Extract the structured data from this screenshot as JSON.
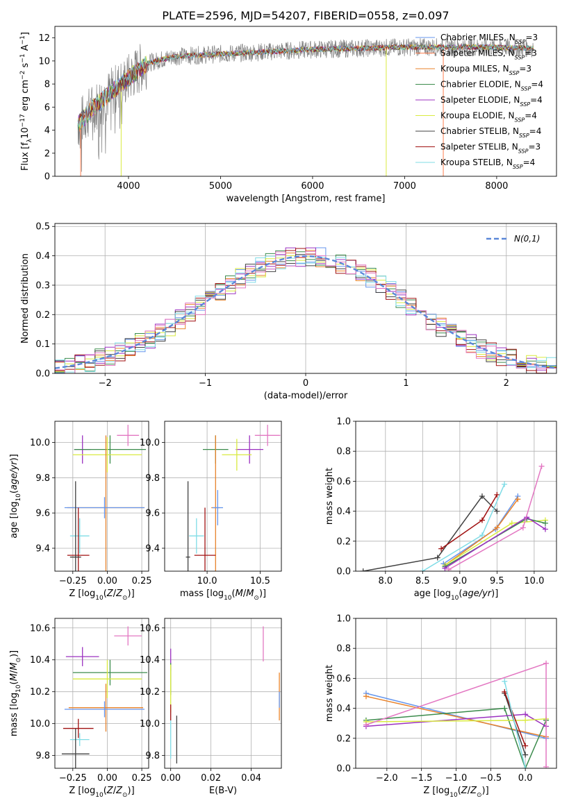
{
  "figure_title": "PLATE=2596, MJD=54207, FIBERID=0558, z=0.097",
  "colors": {
    "observed": "#808080",
    "models": [
      "#6495ed",
      "#ff7f50",
      "#e8822a",
      "#3b8b4c",
      "#9b30c0",
      "#d9ea3f",
      "#404040",
      "#a01010",
      "#7fdce6",
      "#e377c2"
    ]
  },
  "chart_data": [
    {
      "id": "spectrum",
      "type": "line",
      "title": "PLATE=2596, MJD=54207, FIBERID=0558, z=0.097",
      "xlabel": "wavelength [Angstrom, rest frame]",
      "ylabel": "Flux [f_λ10^-17 erg cm^-2 s^-1 A^-1]",
      "xlim": [
        3200,
        8650
      ],
      "ylim": [
        0,
        13
      ],
      "xticks": [
        "4000",
        "5000",
        "6000",
        "7000",
        "8000"
      ],
      "yticks": [
        "0",
        "2",
        "4",
        "6",
        "8",
        "10",
        "12"
      ],
      "grid": false,
      "legend": "top-right",
      "observed_anchors": {
        "x": [
          3450,
          3600,
          3800,
          4000,
          4200,
          4500,
          5000,
          5500,
          6000,
          6500,
          7000,
          7500,
          8000,
          8400
        ],
        "y": [
          4.5,
          5.8,
          7.2,
          8.5,
          9.8,
          10.4,
          10.6,
          10.8,
          11.0,
          11.1,
          11.2,
          11.2,
          11.2,
          11.1
        ]
      },
      "legend_entries": [
        {
          "label": "Chabrier MILES, N",
          "sub": "SSP",
          "tail": "=3",
          "color": "#6495ed"
        },
        {
          "label": "Salpeter MILES, N",
          "sub": "SSP",
          "tail": "=3",
          "color": "#ff7f50"
        },
        {
          "label": "Kroupa MILES, N",
          "sub": "SSP",
          "tail": "=3",
          "color": "#e8822a"
        },
        {
          "label": "Chabrier ELODIE, N",
          "sub": "SSP",
          "tail": "=4",
          "color": "#3b8b4c"
        },
        {
          "label": "Salpeter ELODIE, N",
          "sub": "SSP",
          "tail": "=4",
          "color": "#9b30c0"
        },
        {
          "label": "Kroupa ELODIE, N",
          "sub": "SSP",
          "tail": "=4",
          "color": "#d9ea3f"
        },
        {
          "label": "Chabrier STELIB, N",
          "sub": "SSP",
          "tail": "=4",
          "color": "#404040"
        },
        {
          "label": "Salpeter STELIB, N",
          "sub": "SSP",
          "tail": "=3",
          "color": "#a01010"
        },
        {
          "label": "Kroupa STELIB, N",
          "sub": "SSP",
          "tail": "=4",
          "color": "#7fdce6"
        }
      ]
    },
    {
      "id": "residuals",
      "type": "line",
      "xlabel": "(data-model)/error",
      "ylabel": "Normed distribution",
      "xlim": [
        -2.5,
        2.5
      ],
      "ylim": [
        0,
        0.51
      ],
      "xticks": [
        "−2",
        "−1",
        "0",
        "1",
        "2"
      ],
      "yticks": [
        "0.0",
        "0.1",
        "0.2",
        "0.3",
        "0.4",
        "0.5"
      ],
      "grid": true,
      "legend": "top-right",
      "legend_label": "N(0,1)",
      "curve": "gaussian mean 0 sigma 1, peak 0.399"
    },
    {
      "id": "age-vs-Z",
      "type": "scatter",
      "xlabel": "Z [log10(Z/Z⊙)]",
      "ylabel": "age [log10(age/yr)]",
      "xlim": [
        -0.38,
        0.3
      ],
      "ylim": [
        9.27,
        10.12
      ],
      "xticks": [
        "−0.25",
        "0.00",
        "0.25"
      ],
      "yticks": [
        "9.4",
        "9.6",
        "9.8",
        "10.0"
      ],
      "grid": true,
      "points": [
        {
          "x": 0.15,
          "y": 10.04,
          "xerr": 0.08,
          "yerr": 0.06,
          "color": "#e377c2"
        },
        {
          "x": -0.18,
          "y": 9.96,
          "xerr": 0.06,
          "yerr": 0.08,
          "color": "#9b30c0"
        },
        {
          "x": 0.02,
          "y": 9.96,
          "xerr": 0.26,
          "yerr": 0.08,
          "color": "#3b8b4c"
        },
        {
          "x": 0.0,
          "y": 9.93,
          "xerr": 0.25,
          "yerr": 0.1,
          "color": "#d9ea3f"
        },
        {
          "x": -0.01,
          "y": 9.63,
          "xerr": 0.28,
          "yerr": 0.41,
          "color": "#e8822a"
        },
        {
          "x": -0.02,
          "y": 9.63,
          "xerr": 0.29,
          "yerr": 0.06,
          "color": "#6495ed"
        },
        {
          "x": -0.2,
          "y": 9.47,
          "xerr": 0.07,
          "yerr": 0.1,
          "color": "#7fdce6"
        },
        {
          "x": -0.21,
          "y": 9.36,
          "xerr": 0.08,
          "yerr": 0.27,
          "color": "#a01010"
        },
        {
          "x": -0.23,
          "y": 9.35,
          "xerr": 0.04,
          "yerr": 0.43,
          "color": "#404040"
        }
      ]
    },
    {
      "id": "age-vs-mass",
      "type": "scatter",
      "xlabel": "mass [log10(M/M⊙)]",
      "ylabel": "",
      "xlim": [
        9.6,
        10.7
      ],
      "ylim": [
        9.27,
        10.12
      ],
      "xticks": [
        "10.0",
        "10.5"
      ],
      "yticks": [
        "9.4",
        "9.6",
        "9.8",
        "10.0"
      ],
      "grid": true,
      "points": [
        {
          "x": 10.57,
          "y": 10.04,
          "xerr": 0.12,
          "yerr": 0.06,
          "color": "#e377c2"
        },
        {
          "x": 10.4,
          "y": 9.96,
          "xerr": 0.13,
          "yerr": 0.08,
          "color": "#9b30c0"
        },
        {
          "x": 10.08,
          "y": 9.96,
          "xerr": 0.12,
          "yerr": 0.08,
          "color": "#3b8b4c"
        },
        {
          "x": 10.28,
          "y": 9.93,
          "xerr": 0.14,
          "yerr": 0.09,
          "color": "#d9ea3f"
        },
        {
          "x": 10.08,
          "y": 9.63,
          "xerr": 0.04,
          "yerr": 0.41,
          "color": "#e8822a"
        },
        {
          "x": 10.1,
          "y": 9.63,
          "xerr": 0.05,
          "yerr": 0.1,
          "color": "#6495ed"
        },
        {
          "x": 9.9,
          "y": 9.47,
          "xerr": 0.07,
          "yerr": 0.1,
          "color": "#7fdce6"
        },
        {
          "x": 9.98,
          "y": 9.36,
          "xerr": 0.1,
          "yerr": 0.27,
          "color": "#a01010"
        },
        {
          "x": 9.82,
          "y": 9.35,
          "xerr": 0.02,
          "yerr": 0.43,
          "color": "#404040"
        }
      ]
    },
    {
      "id": "mass-vs-Z",
      "type": "scatter",
      "xlabel": "Z [log10(Z/Z⊙)]",
      "ylabel": "mass [log10(M/M⊙)]",
      "xlim": [
        -0.38,
        0.3
      ],
      "ylim": [
        9.72,
        10.66
      ],
      "xticks": [
        "−0.25",
        "0.00",
        "0.25"
      ],
      "yticks": [
        "9.8",
        "10.0",
        "10.2",
        "10.4",
        "10.6"
      ],
      "grid": true,
      "points": [
        {
          "x": 0.15,
          "y": 10.55,
          "xerr": 0.1,
          "yerr": 0.06,
          "color": "#e377c2"
        },
        {
          "x": -0.18,
          "y": 10.42,
          "xerr": 0.12,
          "yerr": 0.06,
          "color": "#9b30c0"
        },
        {
          "x": 0.02,
          "y": 10.32,
          "xerr": 0.27,
          "yerr": 0.08,
          "color": "#3b8b4c"
        },
        {
          "x": 0.0,
          "y": 10.28,
          "xerr": 0.25,
          "yerr": 0.12,
          "color": "#d9ea3f"
        },
        {
          "x": -0.01,
          "y": 10.1,
          "xerr": 0.27,
          "yerr": 0.15,
          "color": "#e8822a"
        },
        {
          "x": -0.02,
          "y": 10.09,
          "xerr": 0.29,
          "yerr": 0.05,
          "color": "#6495ed"
        },
        {
          "x": -0.2,
          "y": 9.9,
          "xerr": 0.07,
          "yerr": 0.04,
          "color": "#7fdce6"
        },
        {
          "x": -0.21,
          "y": 9.97,
          "xerr": 0.11,
          "yerr": 0.06,
          "color": "#a01010"
        },
        {
          "x": -0.23,
          "y": 9.81,
          "xerr": 0.1,
          "yerr": 0.16,
          "color": "#404040"
        }
      ]
    },
    {
      "id": "mass-vs-EBV",
      "type": "scatter",
      "xlabel": "E(B-V)",
      "ylabel": "",
      "xlim": [
        -0.003,
        0.055
      ],
      "ylim": [
        9.72,
        10.66
      ],
      "xticks": [
        "0.00",
        "0.02",
        "0.04"
      ],
      "yticks": [
        "9.8",
        "10.0",
        "10.2",
        "10.4",
        "10.6"
      ],
      "grid": true,
      "points": [
        {
          "x": 0.046,
          "y": 10.5,
          "xerr": 0,
          "yerr": 0.11,
          "color": "#e377c2"
        },
        {
          "x": 0.054,
          "y": 10.17,
          "xerr": 0,
          "yerr": 0.15,
          "color": "#e8822a"
        },
        {
          "x": 0.054,
          "y": 10.15,
          "xerr": 0,
          "yerr": 0.05,
          "color": "#6495ed"
        },
        {
          "x": 0.0,
          "y": 10.4,
          "xerr": 0,
          "yerr": 0.07,
          "color": "#9b30c0"
        },
        {
          "x": 0.0,
          "y": 10.28,
          "xerr": 0,
          "yerr": 0.1,
          "color": "#3b8b4c"
        },
        {
          "x": 0.0,
          "y": 10.22,
          "xerr": 0,
          "yerr": 0.15,
          "color": "#d9ea3f"
        },
        {
          "x": 0.0,
          "y": 10.07,
          "xerr": 0,
          "yerr": 0.05,
          "color": "#a01010"
        },
        {
          "x": 0.0,
          "y": 9.9,
          "xerr": 0,
          "yerr": 0.12,
          "color": "#7fdce6"
        },
        {
          "x": 0.003,
          "y": 9.9,
          "xerr": 0,
          "yerr": 0.15,
          "color": "#404040"
        }
      ]
    },
    {
      "id": "weight-vs-age",
      "type": "line",
      "xlabel": "age [log10(age/yr)]",
      "ylabel": "mass weight",
      "xlim": [
        7.6,
        10.3
      ],
      "ylim": [
        0,
        1.0
      ],
      "xticks": [
        "8.0",
        "8.5",
        "9.0",
        "9.5",
        "10.0"
      ],
      "yticks": [
        "0.0",
        "0.2",
        "0.4",
        "0.6",
        "0.8",
        "1.0"
      ],
      "grid": true,
      "series": [
        {
          "color": "#404040",
          "x": [
            7.7,
            8.7,
            9.3,
            9.5
          ],
          "y": [
            0.0,
            0.09,
            0.5,
            0.4
          ]
        },
        {
          "color": "#a01010",
          "x": [
            8.75,
            9.3,
            9.5
          ],
          "y": [
            0.15,
            0.34,
            0.51
          ]
        },
        {
          "color": "#7fdce6",
          "x": [
            8.5,
            9.3,
            9.6
          ],
          "y": [
            0.0,
            0.24,
            0.58
          ]
        },
        {
          "color": "#6495ed",
          "x": [
            8.78,
            9.48,
            9.78
          ],
          "y": [
            0.05,
            0.28,
            0.5
          ]
        },
        {
          "color": "#e8822a",
          "x": [
            8.8,
            9.5,
            9.78
          ],
          "y": [
            0.04,
            0.29,
            0.48
          ]
        },
        {
          "color": "#d9ea3f",
          "x": [
            8.8,
            9.7,
            10.15
          ],
          "y": [
            0.04,
            0.32,
            0.34
          ]
        },
        {
          "color": "#3b8b4c",
          "x": [
            8.8,
            9.9,
            10.15
          ],
          "y": [
            0.03,
            0.35,
            0.32
          ]
        },
        {
          "color": "#9b30c0",
          "x": [
            8.8,
            9.9,
            10.15
          ],
          "y": [
            0.02,
            0.36,
            0.28
          ]
        },
        {
          "color": "#e377c2",
          "x": [
            8.85,
            9.85,
            10.1
          ],
          "y": [
            0.01,
            0.29,
            0.7
          ]
        }
      ]
    },
    {
      "id": "weight-vs-Z",
      "type": "line",
      "xlabel": "Z [log10(Z/Z⊙)]",
      "ylabel": "mass weight",
      "xlim": [
        -2.45,
        0.45
      ],
      "ylim": [
        0,
        1.0
      ],
      "xticks": [
        "−2.0",
        "−1.5",
        "−1.0",
        "−0.5",
        "0.0"
      ],
      "yticks": [
        "0.0",
        "0.2",
        "0.4",
        "0.6",
        "0.8",
        "1.0"
      ],
      "grid": true,
      "series": [
        {
          "color": "#6495ed",
          "x": [
            -2.3,
            0.3
          ],
          "y": [
            0.5,
            0.2
          ]
        },
        {
          "color": "#e8822a",
          "x": [
            -2.3,
            0.3
          ],
          "y": [
            0.48,
            0.21
          ]
        },
        {
          "color": "#3b8b4c",
          "x": [
            -2.3,
            -0.3,
            0.0,
            0.3,
            0.3
          ],
          "y": [
            0.32,
            0.4,
            0.0,
            0.32,
            0.32
          ]
        },
        {
          "color": "#9b30c0",
          "x": [
            -2.3,
            0.0,
            0.3
          ],
          "y": [
            0.28,
            0.36,
            0.28
          ]
        },
        {
          "color": "#d9ea3f",
          "x": [
            -2.3,
            0.0,
            0.3
          ],
          "y": [
            0.31,
            0.32,
            0.33
          ]
        },
        {
          "color": "#404040",
          "x": [
            -0.3,
            0.0
          ],
          "y": [
            0.5,
            0.09
          ]
        },
        {
          "color": "#a01010",
          "x": [
            -0.3,
            0.0
          ],
          "y": [
            0.51,
            0.15
          ]
        },
        {
          "color": "#7fdce6",
          "x": [
            -0.3,
            0.0
          ],
          "y": [
            0.58,
            0.0
          ]
        },
        {
          "color": "#e377c2",
          "x": [
            -2.3,
            0.3,
            0.3
          ],
          "y": [
            0.29,
            0.7,
            0.01
          ]
        }
      ]
    }
  ]
}
